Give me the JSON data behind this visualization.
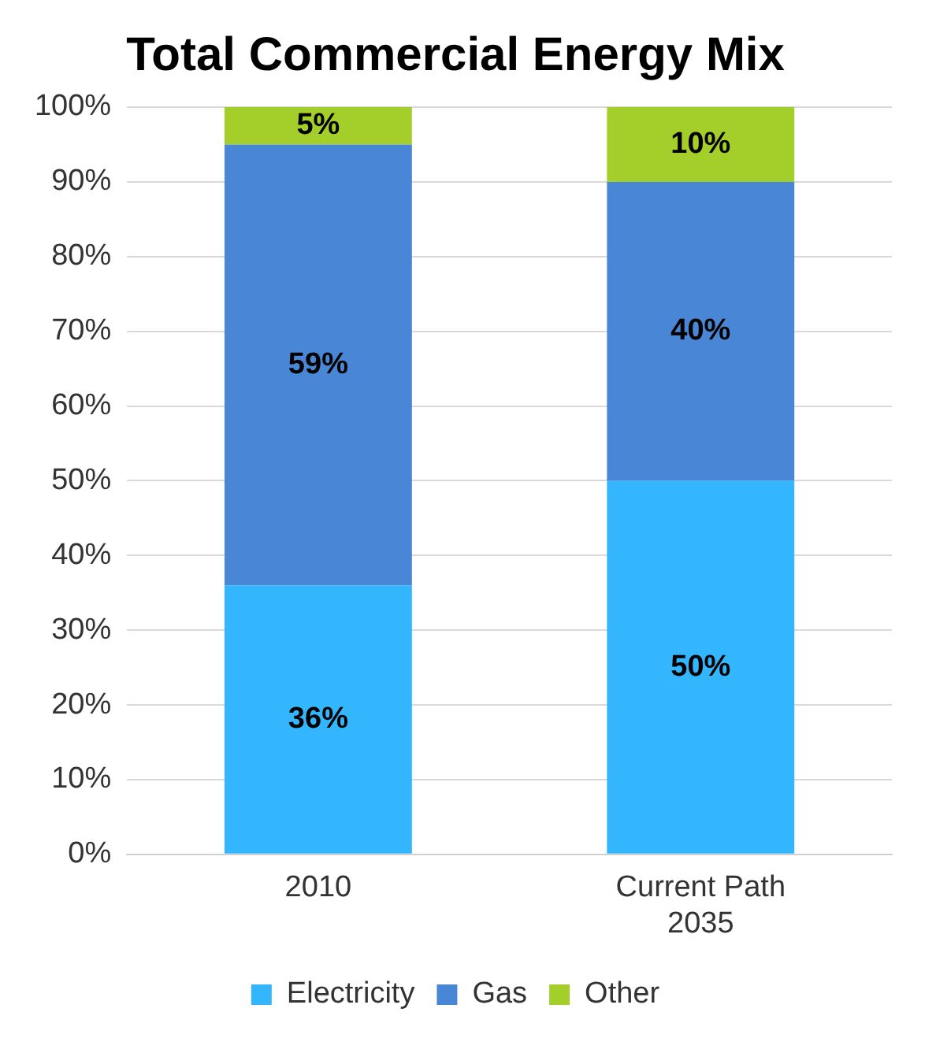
{
  "chart_data": {
    "type": "bar",
    "title": "Total Commercial Energy Mix",
    "categories": [
      "2010",
      "Current Path 2035"
    ],
    "stacked": true,
    "series": [
      {
        "name": "Electricity",
        "color": "#33b6fd",
        "values": [
          36,
          50
        ]
      },
      {
        "name": "Gas",
        "color": "#4a86d6",
        "values": [
          59,
          40
        ]
      },
      {
        "name": "Other",
        "color": "#a4cf2a",
        "values": [
          5,
          10
        ]
      }
    ],
    "value_labels": [
      [
        "36%",
        "50%"
      ],
      [
        "59%",
        "40%"
      ],
      [
        "5%",
        "10%"
      ]
    ],
    "ylim": [
      0,
      100
    ],
    "yticks": [
      {
        "value": 0,
        "label": "0%"
      },
      {
        "value": 10,
        "label": "10%"
      },
      {
        "value": 20,
        "label": "20%"
      },
      {
        "value": 30,
        "label": "30%"
      },
      {
        "value": 40,
        "label": "40%"
      },
      {
        "value": 50,
        "label": "50%"
      },
      {
        "value": 60,
        "label": "60%"
      },
      {
        "value": 70,
        "label": "70%"
      },
      {
        "value": 80,
        "label": "80%"
      },
      {
        "value": 90,
        "label": "90%"
      },
      {
        "value": 100,
        "label": "100%"
      }
    ],
    "grid": "y",
    "legend": "bottom"
  }
}
